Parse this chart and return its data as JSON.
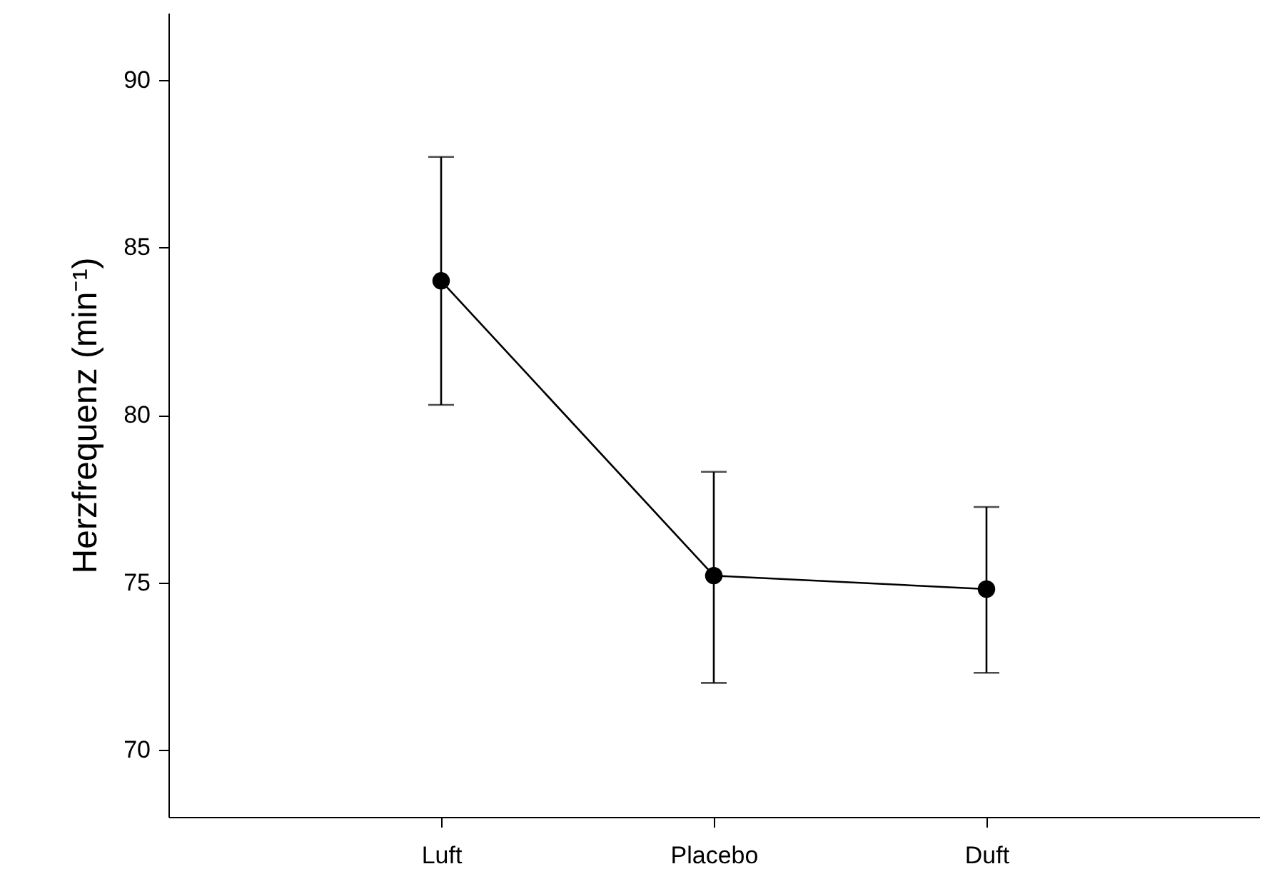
{
  "chart_data": {
    "type": "line",
    "ylabel": "Herzfrequenz (min⁻¹)",
    "categories": [
      "Luft",
      "Placebo",
      "Duft"
    ],
    "series": [
      {
        "color": "#000000",
        "values": [
          84.0,
          75.2,
          74.8
        ],
        "errors": [
          [
            80.3,
            87.7
          ],
          [
            72.0,
            78.3
          ],
          [
            72.3,
            77.25
          ]
        ]
      }
    ],
    "ylim": [
      68,
      92
    ],
    "yticks": [
      70,
      75,
      80,
      85,
      90
    ],
    "marker": "circle",
    "line_style": "solid",
    "grid": false
  }
}
